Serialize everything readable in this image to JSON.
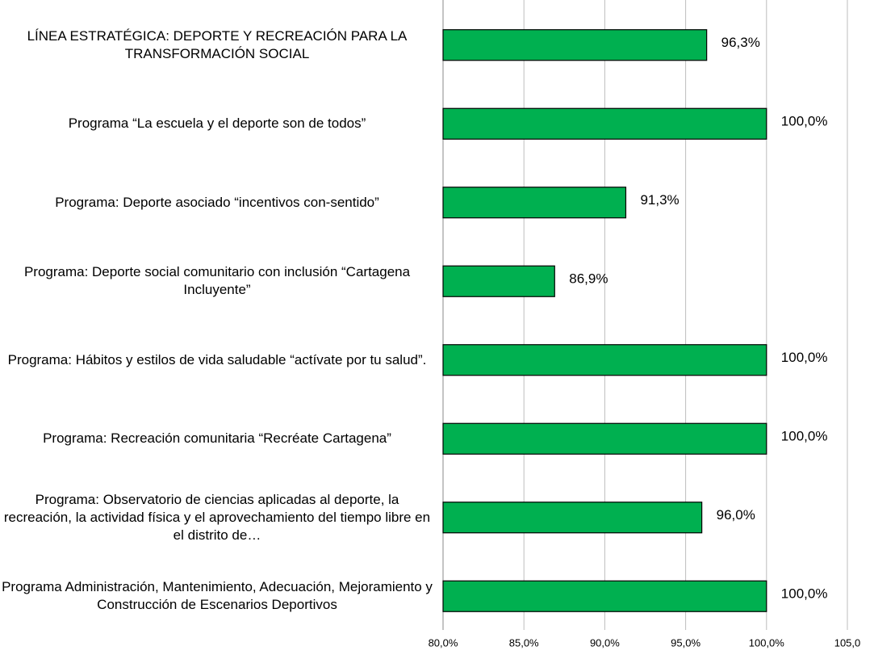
{
  "chart_data": {
    "type": "bar",
    "orientation": "horizontal",
    "categories": [
      "LÍNEA ESTRATÉGICA: DEPORTE Y RECREACIÓN PARA LA TRANSFORMACIÓN SOCIAL",
      "Programa “La escuela y el deporte son de todos”",
      "Programa: Deporte asociado “incentivos con-sentido”",
      "Programa: Deporte social comunitario con inclusión “Cartagena Incluyente”",
      "Programa: Hábitos y estilos de vida saludable “actívate por tu salud”.",
      "Programa: Recreación comunitaria “Recréate Cartagena”",
      "Programa: Observatorio de ciencias aplicadas al deporte, la recreación, la actividad física y el aprovechamiento del tiempo libre en el distrito de…",
      "Programa Administración, Mantenimiento, Adecuación, Mejoramiento y Construcción de Escenarios Deportivos"
    ],
    "values": [
      96.3,
      100,
      91.3,
      86.9,
      100,
      100,
      96,
      100
    ],
    "value_labels": [
      "96,3%",
      "100,0%",
      "91,3%",
      "86,9%",
      "100,0%",
      "100,0%",
      "96,0%",
      "100,0%"
    ],
    "color": "#00b050",
    "xlim": [
      80,
      105
    ],
    "xticks": [
      {
        "value": 80,
        "label": "80,0%"
      },
      {
        "value": 85,
        "label": "85,0%"
      },
      {
        "value": 90,
        "label": "90,0%"
      },
      {
        "value": 95,
        "label": "95,0%"
      },
      {
        "value": 100,
        "label": "100,0%"
      },
      {
        "value": 105,
        "label": "105,0"
      }
    ],
    "grid": true
  }
}
